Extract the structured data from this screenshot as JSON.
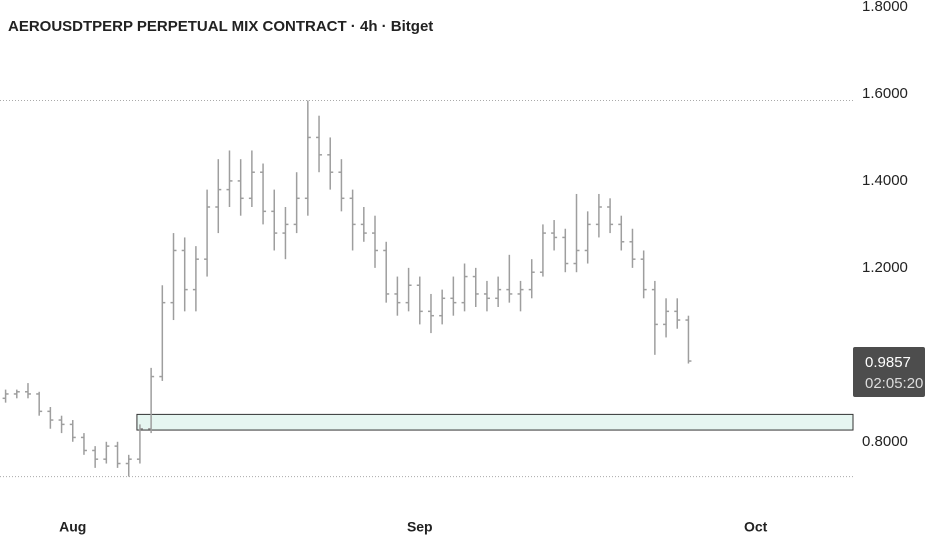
{
  "chart_data": {
    "type": "ohlc",
    "title": "AEROUSDTPERP PERPETUAL MIX CONTRACT · 4h · Bitget",
    "open": [
      0.9,
      0.91,
      0.915,
      0.91,
      0.87,
      0.85,
      0.84,
      0.81,
      0.78,
      0.76,
      0.79,
      0.75,
      0.76,
      0.83,
      0.95,
      1.12,
      1.24,
      1.15,
      1.22,
      1.34,
      1.38,
      1.4,
      1.36,
      1.42,
      1.33,
      1.28,
      1.3,
      1.36,
      1.5,
      1.46,
      1.42,
      1.36,
      1.3,
      1.28,
      1.24,
      1.14,
      1.12,
      1.16,
      1.1,
      1.09,
      1.13,
      1.12,
      1.18,
      1.14,
      1.13,
      1.15,
      1.14,
      1.15,
      1.19,
      1.28,
      1.27,
      1.21,
      1.24,
      1.3,
      1.34,
      1.3,
      1.26,
      1.22,
      1.15,
      1.07,
      1.1,
      1.08
    ],
    "high": [
      0.92,
      0.92,
      0.935,
      0.915,
      0.88,
      0.86,
      0.85,
      0.82,
      0.79,
      0.8,
      0.8,
      0.77,
      0.84,
      0.97,
      1.16,
      1.28,
      1.27,
      1.25,
      1.38,
      1.45,
      1.47,
      1.45,
      1.47,
      1.44,
      1.38,
      1.34,
      1.42,
      1.585,
      1.55,
      1.5,
      1.45,
      1.38,
      1.34,
      1.32,
      1.26,
      1.18,
      1.2,
      1.18,
      1.14,
      1.15,
      1.18,
      1.21,
      1.2,
      1.17,
      1.18,
      1.23,
      1.17,
      1.22,
      1.3,
      1.31,
      1.29,
      1.37,
      1.33,
      1.37,
      1.36,
      1.32,
      1.29,
      1.24,
      1.17,
      1.13,
      1.13,
      1.09
    ],
    "low": [
      0.89,
      0.9,
      0.9,
      0.86,
      0.83,
      0.82,
      0.8,
      0.77,
      0.74,
      0.75,
      0.74,
      0.72,
      0.75,
      0.82,
      0.94,
      1.08,
      1.1,
      1.1,
      1.18,
      1.28,
      1.34,
      1.32,
      1.34,
      1.3,
      1.24,
      1.22,
      1.28,
      1.32,
      1.42,
      1.38,
      1.33,
      1.24,
      1.26,
      1.2,
      1.12,
      1.09,
      1.1,
      1.07,
      1.05,
      1.07,
      1.09,
      1.1,
      1.11,
      1.1,
      1.11,
      1.12,
      1.1,
      1.13,
      1.18,
      1.24,
      1.19,
      1.19,
      1.21,
      1.27,
      1.28,
      1.24,
      1.2,
      1.13,
      1.0,
      1.04,
      1.06,
      0.98
    ],
    "close": [
      0.91,
      0.915,
      0.91,
      0.87,
      0.85,
      0.84,
      0.81,
      0.78,
      0.76,
      0.79,
      0.75,
      0.76,
      0.83,
      0.95,
      1.12,
      1.24,
      1.15,
      1.22,
      1.34,
      1.38,
      1.4,
      1.36,
      1.42,
      1.33,
      1.28,
      1.3,
      1.36,
      1.5,
      1.46,
      1.42,
      1.36,
      1.3,
      1.28,
      1.24,
      1.14,
      1.12,
      1.16,
      1.1,
      1.09,
      1.13,
      1.12,
      1.18,
      1.14,
      1.13,
      1.15,
      1.14,
      1.15,
      1.19,
      1.28,
      1.27,
      1.21,
      1.24,
      1.3,
      1.34,
      1.3,
      1.26,
      1.22,
      1.15,
      1.07,
      1.1,
      1.08,
      0.9857
    ],
    "color": "#9e9e9e",
    "xlim": [
      -0.5,
      75.7
    ],
    "xticks": [
      {
        "value": 6,
        "label": "Aug"
      },
      {
        "value": 37,
        "label": "Sep"
      },
      {
        "value": 67,
        "label": "Oct"
      }
    ],
    "ylim": [
      0.65,
      1.8
    ],
    "yticks": [
      {
        "value": 0.8,
        "label": "0.8000"
      },
      {
        "value": 1.2,
        "label": "1.2000"
      },
      {
        "value": 1.4,
        "label": "1.4000"
      },
      {
        "value": 1.6,
        "label": "1.6000"
      },
      {
        "value": 1.8,
        "label": "1.8000"
      }
    ],
    "high_low_lines": true,
    "zone": {
      "low": 0.827,
      "high": 0.863,
      "start": 12,
      "color": "#e6f6f1"
    },
    "last_price": 0.9857,
    "countdown": "02:05:20"
  }
}
